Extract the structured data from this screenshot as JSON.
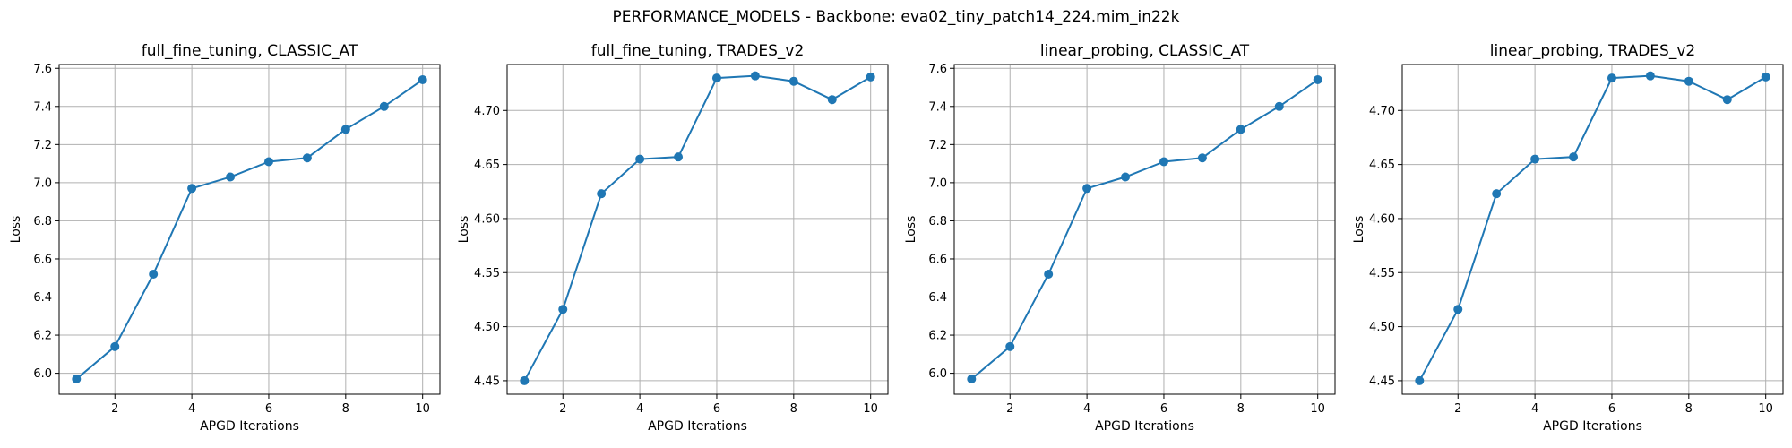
{
  "figure": {
    "title": "PERFORMANCE_MODELS - Backbone: eva02_tiny_patch14_224.mim_in22k"
  },
  "colors": {
    "series": "#1f77b4",
    "grid": "#b0b0b0",
    "axes": "#000000"
  },
  "chart_data": [
    {
      "type": "line",
      "title": "full_fine_tuning, CLASSIC_AT",
      "xlabel": "APGD Iterations",
      "ylabel": "Loss",
      "grid": true,
      "xlim": [
        0.55,
        10.45
      ],
      "ylim": [
        5.89,
        7.62
      ],
      "xticks": [
        2,
        4,
        6,
        8,
        10
      ],
      "yticks": [
        6.0,
        6.2,
        6.4,
        6.6,
        6.8,
        7.0,
        7.2,
        7.4,
        7.6
      ],
      "ytick_labels": [
        "6.0",
        "6.2",
        "6.4",
        "6.6",
        "6.8",
        "7.0",
        "7.2",
        "7.4",
        "7.6"
      ],
      "x": [
        1,
        2,
        3,
        4,
        5,
        6,
        7,
        8,
        9,
        10
      ],
      "y": [
        5.97,
        6.14,
        6.52,
        6.97,
        7.03,
        7.11,
        7.13,
        7.28,
        7.4,
        7.54
      ],
      "marker": "circle"
    },
    {
      "type": "line",
      "title": "full_fine_tuning, TRADES_v2",
      "xlabel": "APGD Iterations",
      "ylabel": "Loss",
      "grid": true,
      "xlim": [
        0.55,
        10.45
      ],
      "ylim": [
        4.4375,
        4.7425
      ],
      "xticks": [
        2,
        4,
        6,
        8,
        10
      ],
      "yticks": [
        4.45,
        4.5,
        4.55,
        4.6,
        4.65,
        4.7
      ],
      "ytick_labels": [
        "4.45",
        "4.50",
        "4.55",
        "4.60",
        "4.65",
        "4.70"
      ],
      "x": [
        1,
        2,
        3,
        4,
        5,
        6,
        7,
        8,
        9,
        10
      ],
      "y": [
        4.45,
        4.516,
        4.623,
        4.655,
        4.657,
        4.73,
        4.732,
        4.727,
        4.71,
        4.731
      ],
      "marker": "circle"
    },
    {
      "type": "line",
      "title": "linear_probing, CLASSIC_AT",
      "xlabel": "APGD Iterations",
      "ylabel": "Loss",
      "grid": true,
      "xlim": [
        0.55,
        10.45
      ],
      "ylim": [
        5.89,
        7.62
      ],
      "xticks": [
        2,
        4,
        6,
        8,
        10
      ],
      "yticks": [
        6.0,
        6.2,
        6.4,
        6.6,
        6.8,
        7.0,
        7.2,
        7.4,
        7.6
      ],
      "ytick_labels": [
        "6.0",
        "6.2",
        "6.4",
        "6.6",
        "6.8",
        "7.0",
        "7.2",
        "7.4",
        "7.6"
      ],
      "x": [
        1,
        2,
        3,
        4,
        5,
        6,
        7,
        8,
        9,
        10
      ],
      "y": [
        5.97,
        6.14,
        6.52,
        6.97,
        7.03,
        7.11,
        7.13,
        7.28,
        7.4,
        7.54
      ],
      "marker": "circle"
    },
    {
      "type": "line",
      "title": "linear_probing, TRADES_v2",
      "xlabel": "APGD Iterations",
      "ylabel": "Loss",
      "grid": true,
      "xlim": [
        0.55,
        10.45
      ],
      "ylim": [
        4.4375,
        4.7425
      ],
      "xticks": [
        2,
        4,
        6,
        8,
        10
      ],
      "yticks": [
        4.45,
        4.5,
        4.55,
        4.6,
        4.65,
        4.7
      ],
      "ytick_labels": [
        "4.45",
        "4.50",
        "4.55",
        "4.60",
        "4.65",
        "4.70"
      ],
      "x": [
        1,
        2,
        3,
        4,
        5,
        6,
        7,
        8,
        9,
        10
      ],
      "y": [
        4.45,
        4.516,
        4.623,
        4.655,
        4.657,
        4.73,
        4.732,
        4.727,
        4.71,
        4.731
      ],
      "marker": "circle"
    }
  ]
}
